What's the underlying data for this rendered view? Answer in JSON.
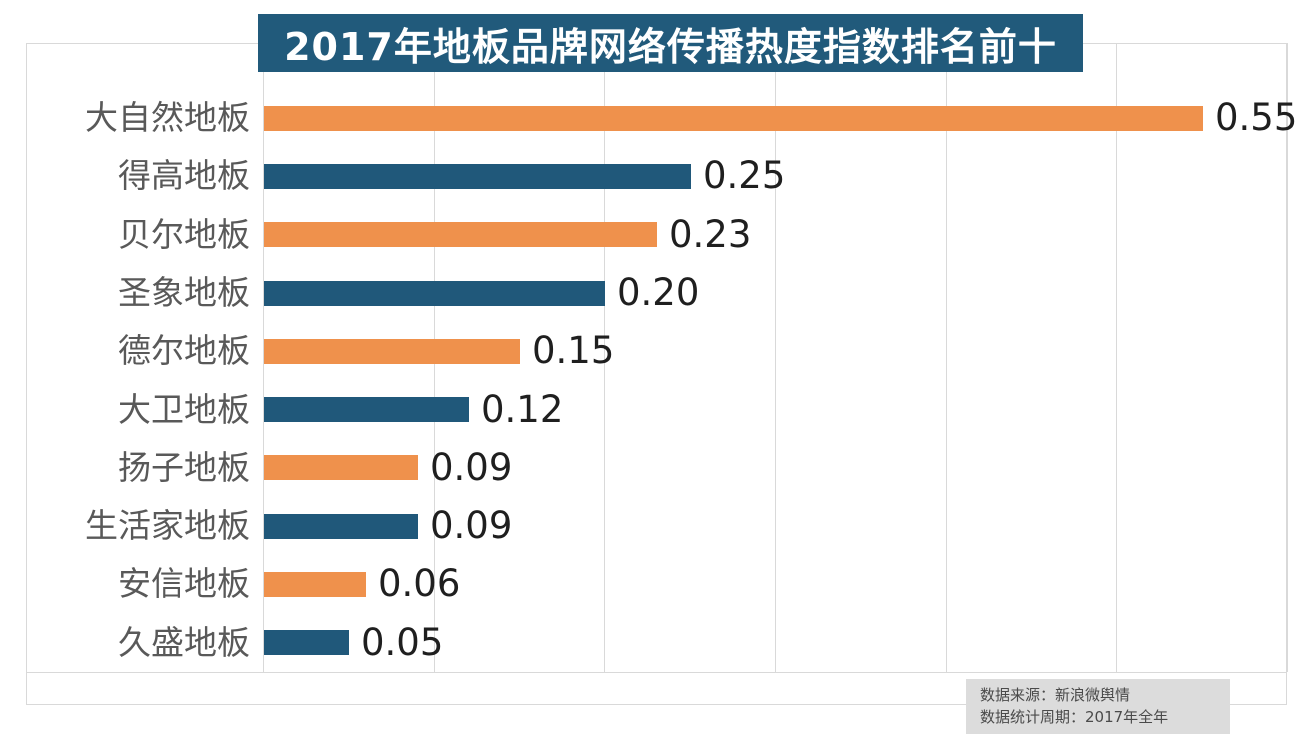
{
  "title": "2017年地板品牌网络传播热度指数排名前十",
  "source_note": {
    "line1": "数据来源：新浪微舆情",
    "line2": "数据统计周期：2017年全年"
  },
  "colors": {
    "orange": "#EF914C",
    "teal": "#20587A",
    "title_bg": "#215A7B",
    "grid": "#D9D9D9",
    "category_label": "#595959",
    "value_label": "#1F1F1F",
    "note_bg": "#DCDCDC",
    "note_text": "#4A4A4A"
  },
  "chart_data": {
    "type": "bar",
    "orientation": "horizontal",
    "title": "2017年地板品牌网络传播热度指数排名前十",
    "categories": [
      "大自然地板",
      "得高地板",
      "贝尔地板",
      "圣象地板",
      "德尔地板",
      "大卫地板",
      "扬子地板",
      "生活家地板",
      "安信地板",
      "久盛地板"
    ],
    "values": [
      0.55,
      0.25,
      0.23,
      0.2,
      0.15,
      0.12,
      0.09,
      0.09,
      0.06,
      0.05
    ],
    "value_labels": [
      "0.55",
      "0.25",
      "0.23",
      "0.20",
      "0.15",
      "0.12",
      "0.09",
      "0.09",
      "0.06",
      "0.05"
    ],
    "bar_colors": [
      "orange",
      "teal",
      "orange",
      "teal",
      "orange",
      "teal",
      "orange",
      "teal",
      "orange",
      "teal"
    ],
    "xlabel": "",
    "ylabel": "",
    "xlim": [
      0,
      0.6
    ],
    "gridlines": [
      0,
      0.1,
      0.2,
      0.3,
      0.4,
      0.5,
      0.6
    ],
    "grid": "vertical-only",
    "legend": "none",
    "value_labels_position": "outside-end"
  }
}
